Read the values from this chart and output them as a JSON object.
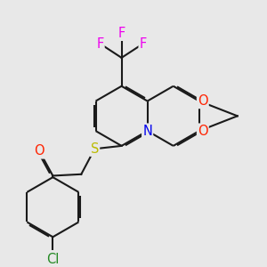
{
  "background_color": "#e8e8e8",
  "bond_color": "#1a1a1a",
  "bond_width": 1.5,
  "atom_colors": {
    "F": "#ee00ee",
    "O": "#ff2200",
    "N": "#0000ee",
    "S": "#bbbb00",
    "Cl": "#228822",
    "C": "#1a1a1a"
  },
  "font_size_atom": 10.5
}
